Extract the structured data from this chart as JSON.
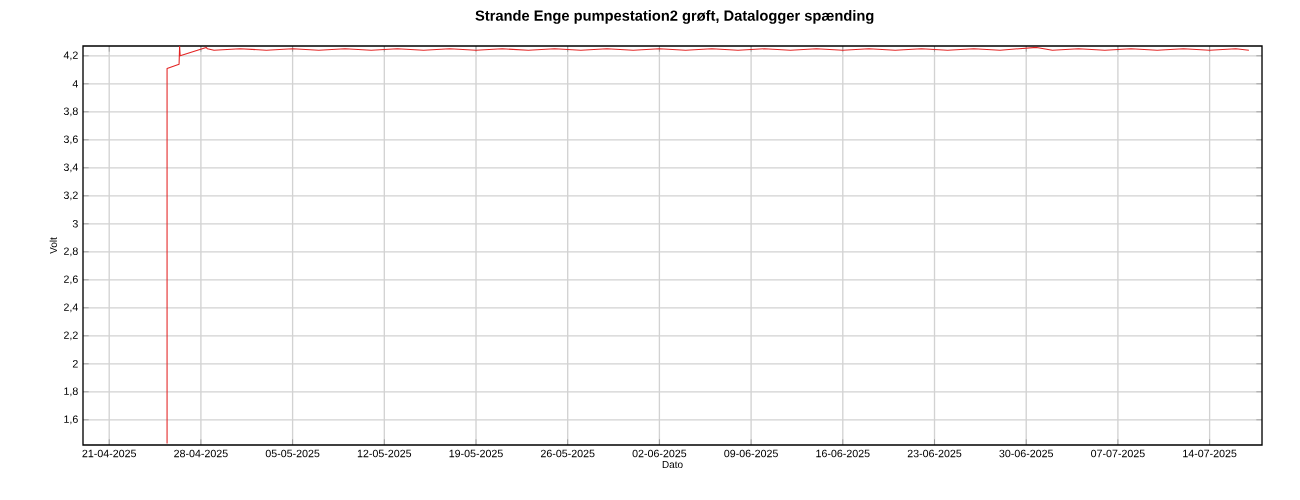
{
  "chart_data": {
    "type": "line",
    "title": "Strande Enge pumpestation2 grøft, Datalogger spænding",
    "xlabel": "Dato",
    "ylabel": "Volt",
    "x": [
      "2025-04-25T10:00",
      "2025-04-25T10:01",
      "2025-04-26T08:00",
      "2025-04-26T09:00",
      "2025-04-26T10:00",
      "2025-04-28T09:40",
      "2025-04-28T12:00",
      "2025-04-29",
      "2025-05-01",
      "2025-05-03",
      "2025-05-05",
      "2025-05-07",
      "2025-05-09",
      "2025-05-11",
      "2025-05-13",
      "2025-05-15",
      "2025-05-17",
      "2025-05-19",
      "2025-05-21",
      "2025-05-23",
      "2025-05-25",
      "2025-05-27",
      "2025-05-29",
      "2025-05-31",
      "2025-06-02",
      "2025-06-04",
      "2025-06-06",
      "2025-06-08",
      "2025-06-10",
      "2025-06-12",
      "2025-06-14",
      "2025-06-16",
      "2025-06-18",
      "2025-06-20",
      "2025-06-22",
      "2025-06-24",
      "2025-06-26",
      "2025-06-28",
      "2025-06-30T19:00",
      "2025-07-02",
      "2025-07-04",
      "2025-07-06",
      "2025-07-08",
      "2025-07-10",
      "2025-07-12",
      "2025-07-14",
      "2025-07-16",
      "2025-07-17"
    ],
    "series": [
      {
        "color": "#e32222",
        "values": [
          1.43,
          4.11,
          4.14,
          4.27,
          4.2,
          4.26,
          4.25,
          4.24,
          4.25,
          4.24,
          4.25,
          4.24,
          4.25,
          4.24,
          4.25,
          4.24,
          4.25,
          4.24,
          4.25,
          4.24,
          4.25,
          4.24,
          4.25,
          4.24,
          4.25,
          4.24,
          4.25,
          4.24,
          4.25,
          4.24,
          4.25,
          4.24,
          4.25,
          4.24,
          4.25,
          4.24,
          4.25,
          4.24,
          4.26,
          4.24,
          4.25,
          4.24,
          4.25,
          4.24,
          4.25,
          4.24,
          4.25,
          4.24
        ]
      }
    ],
    "xlim": [
      "2025-04-19",
      "2025-07-18"
    ],
    "xticks": [
      {
        "value": "2025-04-21",
        "label": "21-04-2025"
      },
      {
        "value": "2025-04-28",
        "label": "28-04-2025"
      },
      {
        "value": "2025-05-05",
        "label": "05-05-2025"
      },
      {
        "value": "2025-05-12",
        "label": "12-05-2025"
      },
      {
        "value": "2025-05-19",
        "label": "19-05-2025"
      },
      {
        "value": "2025-05-26",
        "label": "26-05-2025"
      },
      {
        "value": "2025-06-02",
        "label": "02-06-2025"
      },
      {
        "value": "2025-06-09",
        "label": "09-06-2025"
      },
      {
        "value": "2025-06-16",
        "label": "16-06-2025"
      },
      {
        "value": "2025-06-23",
        "label": "23-06-2025"
      },
      {
        "value": "2025-06-30",
        "label": "30-06-2025"
      },
      {
        "value": "2025-07-07",
        "label": "07-07-2025"
      },
      {
        "value": "2025-07-14",
        "label": "14-07-2025"
      }
    ],
    "ylim": [
      1.42,
      4.27
    ],
    "yticks": [
      {
        "value": 1.6,
        "label": "1,6"
      },
      {
        "value": 1.8,
        "label": "1,8"
      },
      2,
      {
        "value": 2.2,
        "label": "2,2"
      },
      {
        "value": 2.4,
        "label": "2,4"
      },
      {
        "value": 2.6,
        "label": "2,6"
      },
      {
        "value": 2.8,
        "label": "2,8"
      },
      3,
      {
        "value": 3.2,
        "label": "3,2"
      },
      {
        "value": 3.4,
        "label": "3,4"
      },
      {
        "value": 3.6,
        "label": "3,6"
      },
      {
        "value": 3.8,
        "label": "3,8"
      },
      4,
      {
        "value": 4.2,
        "label": "4,2"
      }
    ],
    "grid": true,
    "legend": false,
    "marker": "none",
    "line_style": "solid"
  }
}
